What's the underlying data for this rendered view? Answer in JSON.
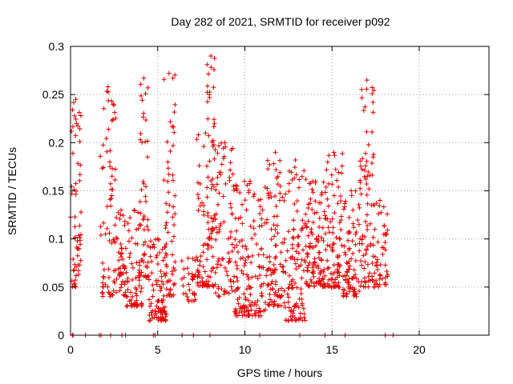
{
  "chart_data": {
    "type": "scatter",
    "title": "Day 282 of 2021, SRMTID for receiver p092",
    "xlabel": "GPS time / hours",
    "ylabel": "SRMTID / TECUs",
    "xlim": [
      0,
      24
    ],
    "ylim": [
      0,
      0.3
    ],
    "xticks": [
      0,
      5,
      10,
      15,
      20
    ],
    "yticks": [
      0,
      0.05,
      0.1,
      0.15,
      0.2,
      0.25,
      0.3
    ],
    "ytick_labels": [
      "0",
      "0.05",
      "0.1",
      "0.15",
      "0.2",
      "0.25",
      "0.3"
    ],
    "grid": true,
    "marker": "plus",
    "marker_color": "#e00000",
    "zero_series_x": [
      0.1,
      0.15,
      0.85,
      1.65,
      1.75,
      2.3,
      2.95,
      3.15,
      4.75,
      4.85,
      6.4,
      7.05,
      8.0,
      10.85,
      13.15,
      14.6,
      15.75,
      18.05,
      18.5
    ],
    "clusters": [
      {
        "x0": 0.0,
        "x1": 0.6,
        "ymin": 0.05,
        "ymax": 0.245,
        "n": 60
      },
      {
        "x0": 1.7,
        "x1": 2.6,
        "ymin": 0.04,
        "ymax": 0.258,
        "n": 70
      },
      {
        "x0": 2.6,
        "x1": 3.2,
        "ymin": 0.04,
        "ymax": 0.13,
        "n": 45
      },
      {
        "x0": 3.2,
        "x1": 4.1,
        "ymin": 0.03,
        "ymax": 0.13,
        "n": 60
      },
      {
        "x0": 3.9,
        "x1": 4.5,
        "ymin": 0.06,
        "ymax": 0.267,
        "n": 55
      },
      {
        "x0": 4.5,
        "x1": 5.5,
        "ymin": 0.015,
        "ymax": 0.1,
        "n": 90
      },
      {
        "x0": 5.3,
        "x1": 6.0,
        "ymin": 0.04,
        "ymax": 0.272,
        "n": 60
      },
      {
        "x0": 6.3,
        "x1": 7.2,
        "ymin": 0.035,
        "ymax": 0.08,
        "n": 30
      },
      {
        "x0": 7.2,
        "x1": 8.3,
        "ymin": 0.05,
        "ymax": 0.21,
        "n": 80
      },
      {
        "x0": 7.8,
        "x1": 8.3,
        "ymin": 0.1,
        "ymax": 0.29,
        "n": 40
      },
      {
        "x0": 8.3,
        "x1": 9.4,
        "ymin": 0.04,
        "ymax": 0.2,
        "n": 80
      },
      {
        "x0": 9.4,
        "x1": 11.2,
        "ymin": 0.02,
        "ymax": 0.16,
        "n": 150
      },
      {
        "x0": 11.2,
        "x1": 12.3,
        "ymin": 0.03,
        "ymax": 0.19,
        "n": 100
      },
      {
        "x0": 12.3,
        "x1": 13.5,
        "ymin": 0.015,
        "ymax": 0.182,
        "n": 110
      },
      {
        "x0": 13.5,
        "x1": 14.6,
        "ymin": 0.05,
        "ymax": 0.16,
        "n": 110
      },
      {
        "x0": 14.6,
        "x1": 15.6,
        "ymin": 0.05,
        "ymax": 0.19,
        "n": 90
      },
      {
        "x0": 15.6,
        "x1": 16.6,
        "ymin": 0.04,
        "ymax": 0.15,
        "n": 80
      },
      {
        "x0": 16.6,
        "x1": 17.4,
        "ymin": 0.05,
        "ymax": 0.265,
        "n": 80
      },
      {
        "x0": 17.3,
        "x1": 18.2,
        "ymin": 0.05,
        "ymax": 0.14,
        "n": 50
      }
    ]
  }
}
